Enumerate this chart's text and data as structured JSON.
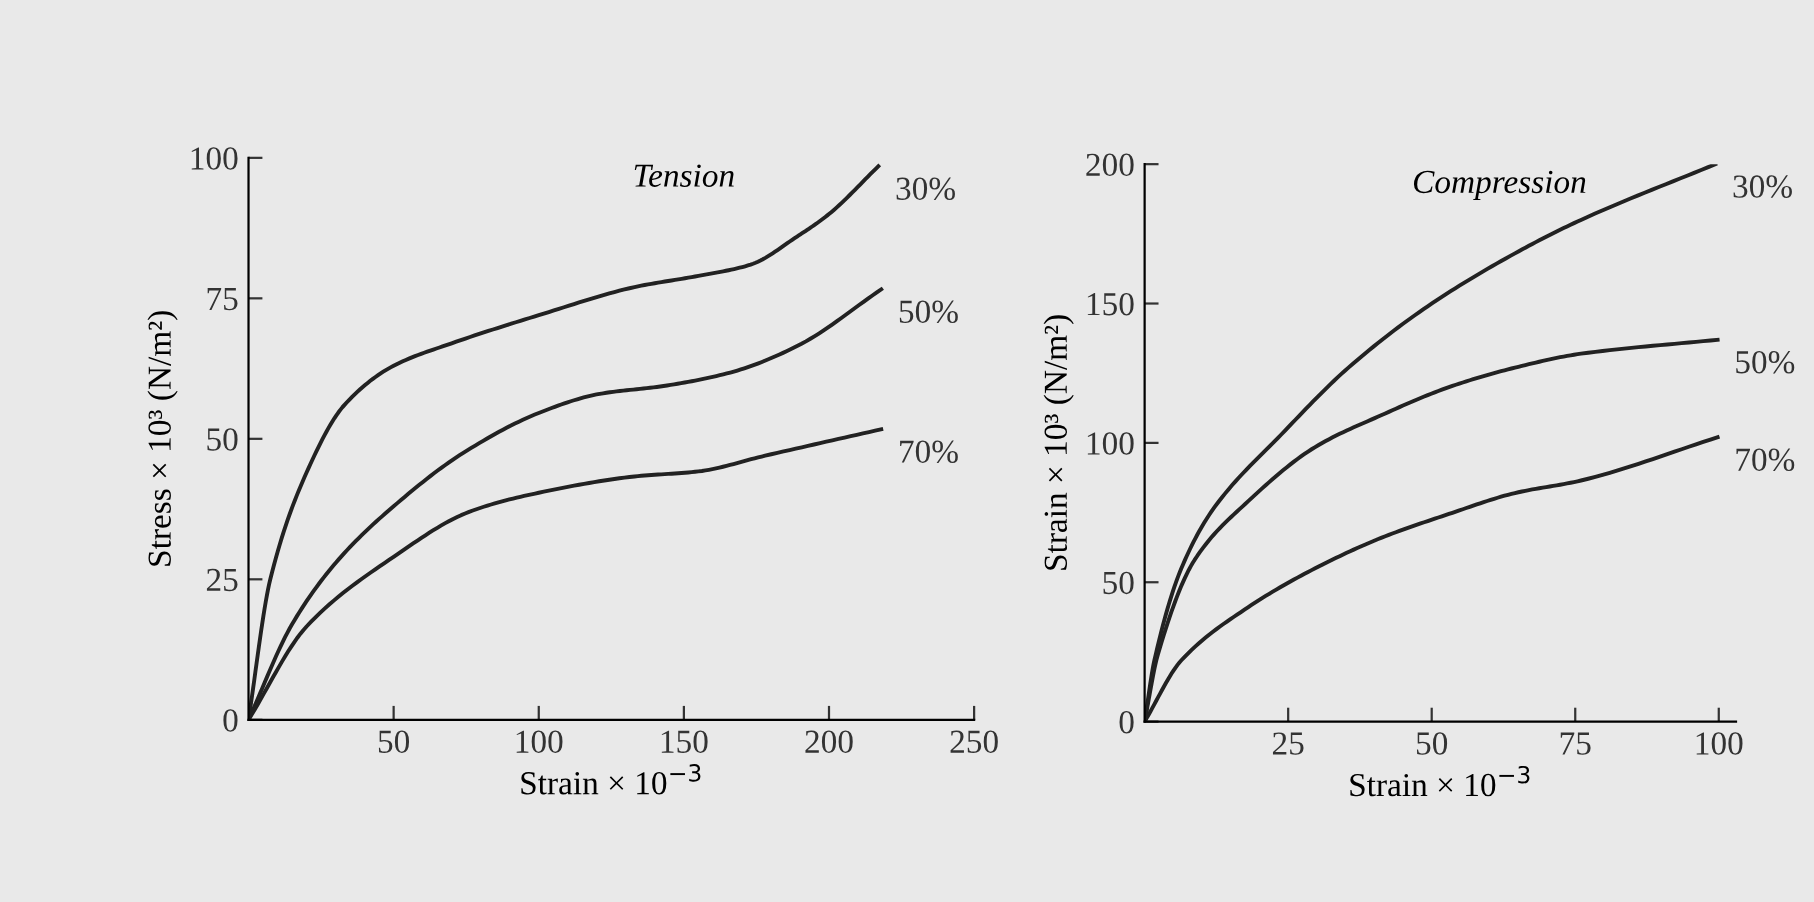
{
  "chart_data": [
    {
      "type": "line",
      "title": "Tension",
      "xlabel": "Strain × 10$^{−3}$",
      "ylabel": "Stress × 10³ (N/m²)",
      "xlim": [
        0,
        250
      ],
      "xticks": [
        50,
        100,
        150,
        200,
        250
      ],
      "ylim": [
        0,
        100
      ],
      "yticks": [
        0,
        25,
        50,
        75,
        100
      ],
      "grid": false,
      "legend": false,
      "marker": "none",
      "line_style": "solid",
      "series": [
        {
          "name": "30%",
          "color": "#222222",
          "x": [
            0,
            7.5,
            20,
            33,
            50,
            70,
            100,
            133,
            155,
            173,
            189,
            200,
            217
          ],
          "values": [
            0,
            25,
            44,
            56,
            63,
            67,
            72,
            77,
            79,
            81,
            86,
            90,
            98.5
          ]
        },
        {
          "name": "50%",
          "color": "#222222",
          "x": [
            0,
            15,
            31,
            50,
            74,
            100,
            121,
            143,
            166,
            189,
            218
          ],
          "values": [
            0,
            17,
            28.5,
            38,
            47.5,
            54.6,
            58,
            59.4,
            61.8,
            66.5,
            76.6
          ]
        },
        {
          "name": "70%",
          "color": "#222222",
          "x": [
            0,
            20,
            50,
            76,
            100,
            133,
            155,
            178,
            218
          ],
          "values": [
            0,
            16.6,
            29,
            37,
            40.4,
            43.3,
            44.2,
            47,
            51.7
          ]
        }
      ]
    },
    {
      "type": "line",
      "title": "Compression",
      "xlabel": "Strain × 10$^{−3}$",
      "ylabel": "Strain × 10³ (N/m²)",
      "xlim": [
        0,
        103
      ],
      "xticks": [
        25,
        50,
        75,
        100
      ],
      "ylim": [
        0,
        200
      ],
      "yticks": [
        0,
        50,
        100,
        150,
        200
      ],
      "grid": false,
      "legend": false,
      "marker": "none",
      "line_style": "solid",
      "series": [
        {
          "name": "30%",
          "color": "#222222",
          "x": [
            0,
            1.7,
            6.4,
            12.2,
            23.8,
            35.5,
            49.3,
            64.5,
            76,
            99.4
          ],
          "values": [
            0,
            22,
            55,
            77,
            103,
            127,
            149,
            168,
            180,
            200
          ]
        },
        {
          "name": "50%",
          "color": "#222222",
          "x": [
            0,
            2.3,
            8.7,
            18,
            29.7,
            41.3,
            53,
            64.5,
            76,
            99.8
          ],
          "values": [
            0,
            24,
            58,
            79,
            98.5,
            110,
            120,
            127,
            132,
            137
          ]
        },
        {
          "name": "70%",
          "color": "#222222",
          "x": [
            0,
            6.4,
            18,
            29.7,
            41.3,
            53,
            64.5,
            76,
            99.8
          ],
          "values": [
            0,
            22,
            41,
            55,
            66,
            74.5,
            82,
            86.5,
            102
          ]
        }
      ]
    }
  ]
}
